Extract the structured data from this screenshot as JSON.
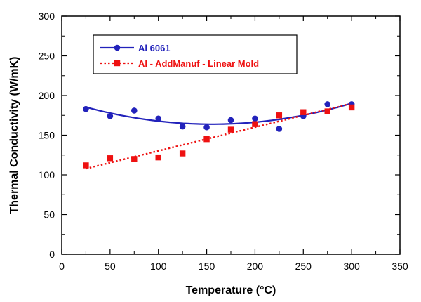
{
  "chart_data": {
    "type": "scatter",
    "xlabel": "Temperature (°C)",
    "ylabel": "Thermal Conductivity (W/mK)",
    "xlim": [
      0,
      350
    ],
    "ylim": [
      0,
      300
    ],
    "xticks": [
      0,
      50,
      100,
      150,
      200,
      250,
      300,
      350
    ],
    "yticks": [
      0,
      50,
      100,
      150,
      200,
      250,
      300
    ],
    "grid": false,
    "legend_position": "top-left",
    "series": [
      {
        "name": "Al 6061",
        "color": "#2222bb",
        "marker": "circle",
        "fit": "quadratic",
        "fit_line_style": "solid",
        "x": [
          25,
          50,
          75,
          100,
          125,
          150,
          175,
          200,
          225,
          250,
          275,
          300
        ],
        "y": [
          183,
          174,
          181,
          171,
          161,
          160,
          169,
          171,
          158,
          174,
          189,
          189
        ]
      },
      {
        "name": "Al - AddManuf - Linear Mold",
        "color": "#ee1111",
        "marker": "square",
        "fit": "linear",
        "fit_line_style": "dotted",
        "x": [
          25,
          50,
          75,
          100,
          125,
          150,
          175,
          200,
          225,
          250,
          275,
          300
        ],
        "y": [
          112,
          121,
          120,
          122,
          127,
          145,
          157,
          164,
          175,
          179,
          180,
          185
        ]
      }
    ]
  }
}
